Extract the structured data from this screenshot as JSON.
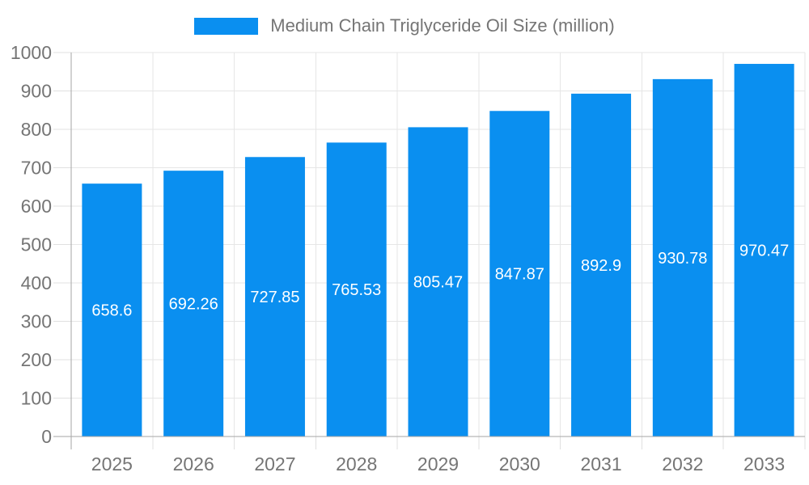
{
  "legend": {
    "label": "Medium Chain Triglyceride Oil Size (million)"
  },
  "chart_data": {
    "type": "bar",
    "title": "Medium Chain Triglyceride Oil Size (million)",
    "xlabel": "",
    "ylabel": "",
    "categories": [
      "2025",
      "2026",
      "2027",
      "2028",
      "2029",
      "2030",
      "2031",
      "2032",
      "2033"
    ],
    "values": [
      658.6,
      692.26,
      727.85,
      765.53,
      805.47,
      847.87,
      892.9,
      930.78,
      970.47
    ],
    "value_labels": [
      "658.6",
      "692.26",
      "727.85",
      "765.53",
      "805.47",
      "847.87",
      "892.9",
      "930.78",
      "970.47"
    ],
    "ylim": [
      0,
      1000
    ],
    "ytick_step": 100,
    "ytick_labels": [
      "0",
      "100",
      "200",
      "300",
      "400",
      "500",
      "600",
      "700",
      "800",
      "900",
      "1000"
    ],
    "grid": true,
    "legend_position": "top-center",
    "colors": {
      "bar": "#0a8ff0",
      "grid": "#e6e6e6",
      "axis": "#a6a6a6",
      "tick": "#e0e0e0",
      "text": "#757575",
      "value_label": "#ffffff"
    }
  }
}
